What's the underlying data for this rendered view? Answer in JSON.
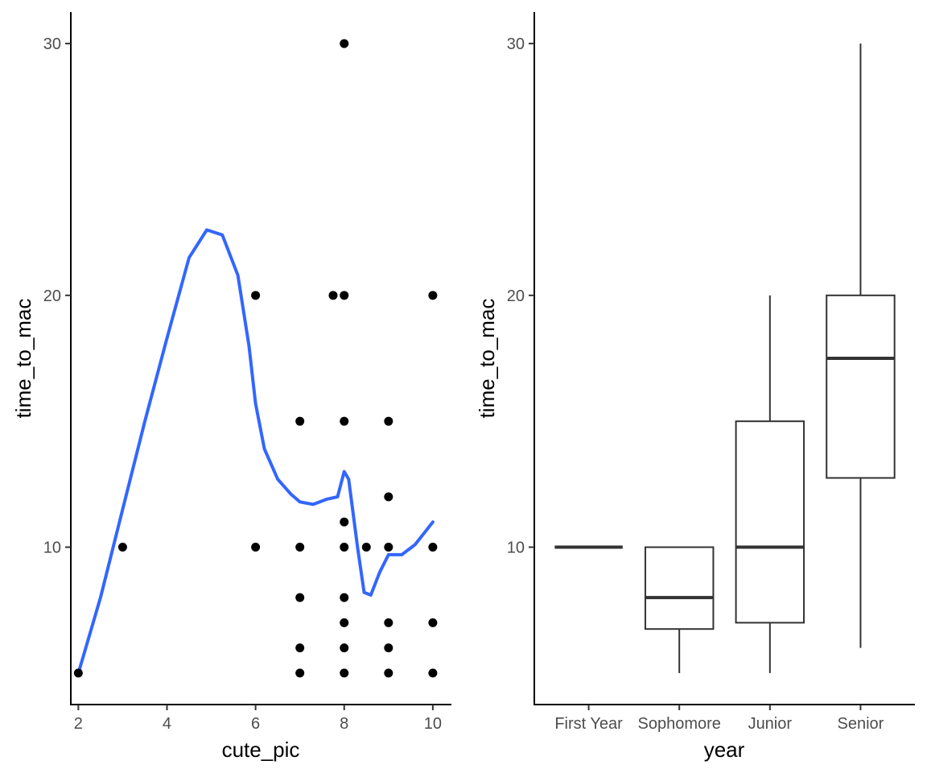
{
  "chart_data": [
    {
      "type": "scatter",
      "xlabel": "cute_pic",
      "ylabel": "time_to_mac",
      "xlim": [
        1.83,
        10.42
      ],
      "ylim": [
        3.75,
        31.25
      ],
      "xticks": [
        2,
        4,
        6,
        8,
        10
      ],
      "yticks": [
        10,
        20,
        30
      ],
      "grid": false,
      "point_color": "#000000",
      "points": [
        {
          "x": 2,
          "y": 5
        },
        {
          "x": 3,
          "y": 10
        },
        {
          "x": 6,
          "y": 20
        },
        {
          "x": 6,
          "y": 10
        },
        {
          "x": 7,
          "y": 15
        },
        {
          "x": 7,
          "y": 10
        },
        {
          "x": 7,
          "y": 8
        },
        {
          "x": 7,
          "y": 6
        },
        {
          "x": 7,
          "y": 5
        },
        {
          "x": 7.75,
          "y": 20
        },
        {
          "x": 8,
          "y": 30
        },
        {
          "x": 8,
          "y": 20
        },
        {
          "x": 8,
          "y": 15
        },
        {
          "x": 8,
          "y": 11
        },
        {
          "x": 8,
          "y": 10
        },
        {
          "x": 8,
          "y": 8
        },
        {
          "x": 8,
          "y": 7
        },
        {
          "x": 8,
          "y": 6
        },
        {
          "x": 8,
          "y": 5
        },
        {
          "x": 8.5,
          "y": 10
        },
        {
          "x": 9,
          "y": 15
        },
        {
          "x": 9,
          "y": 12
        },
        {
          "x": 9,
          "y": 10
        },
        {
          "x": 9,
          "y": 7
        },
        {
          "x": 9,
          "y": 6
        },
        {
          "x": 9,
          "y": 5
        },
        {
          "x": 10,
          "y": 20
        },
        {
          "x": 10,
          "y": 10
        },
        {
          "x": 10,
          "y": 7
        },
        {
          "x": 10,
          "y": 5
        }
      ],
      "smooth_line": {
        "color": "#3366FF",
        "points": [
          {
            "x": 2,
            "y": 5
          },
          {
            "x": 2.5,
            "y": 8
          },
          {
            "x": 3,
            "y": 11.5
          },
          {
            "x": 3.5,
            "y": 15
          },
          {
            "x": 4,
            "y": 18.3
          },
          {
            "x": 4.5,
            "y": 21.5
          },
          {
            "x": 4.9,
            "y": 22.6
          },
          {
            "x": 5.25,
            "y": 22.4
          },
          {
            "x": 5.6,
            "y": 20.8
          },
          {
            "x": 5.85,
            "y": 18
          },
          {
            "x": 6,
            "y": 15.7
          },
          {
            "x": 6.2,
            "y": 13.9
          },
          {
            "x": 6.5,
            "y": 12.7
          },
          {
            "x": 6.8,
            "y": 12.1
          },
          {
            "x": 7,
            "y": 11.8
          },
          {
            "x": 7.3,
            "y": 11.7
          },
          {
            "x": 7.6,
            "y": 11.9
          },
          {
            "x": 7.85,
            "y": 12
          },
          {
            "x": 8,
            "y": 13
          },
          {
            "x": 8.1,
            "y": 12.7
          },
          {
            "x": 8.3,
            "y": 10
          },
          {
            "x": 8.45,
            "y": 8.2
          },
          {
            "x": 8.6,
            "y": 8.1
          },
          {
            "x": 8.8,
            "y": 9
          },
          {
            "x": 9,
            "y": 9.7
          },
          {
            "x": 9.3,
            "y": 9.7
          },
          {
            "x": 9.6,
            "y": 10.1
          },
          {
            "x": 10,
            "y": 11
          }
        ]
      }
    },
    {
      "type": "box",
      "xlabel": "year",
      "ylabel": "time_to_mac",
      "ylim": [
        3.75,
        31.25
      ],
      "yticks": [
        10,
        20,
        30
      ],
      "grid": false,
      "categories": [
        "First Year",
        "Sophomore",
        "Junior",
        "Senior"
      ],
      "boxes": [
        {
          "min": 10,
          "q1": 10,
          "median": 10,
          "q3": 10,
          "max": 10
        },
        {
          "min": 5,
          "q1": 6.75,
          "median": 8,
          "q3": 10,
          "max": 10
        },
        {
          "min": 5,
          "q1": 7,
          "median": 10,
          "q3": 15,
          "max": 20
        },
        {
          "min": 6,
          "q1": 12.75,
          "median": 17.5,
          "q3": 20,
          "max": 30
        }
      ]
    }
  ]
}
